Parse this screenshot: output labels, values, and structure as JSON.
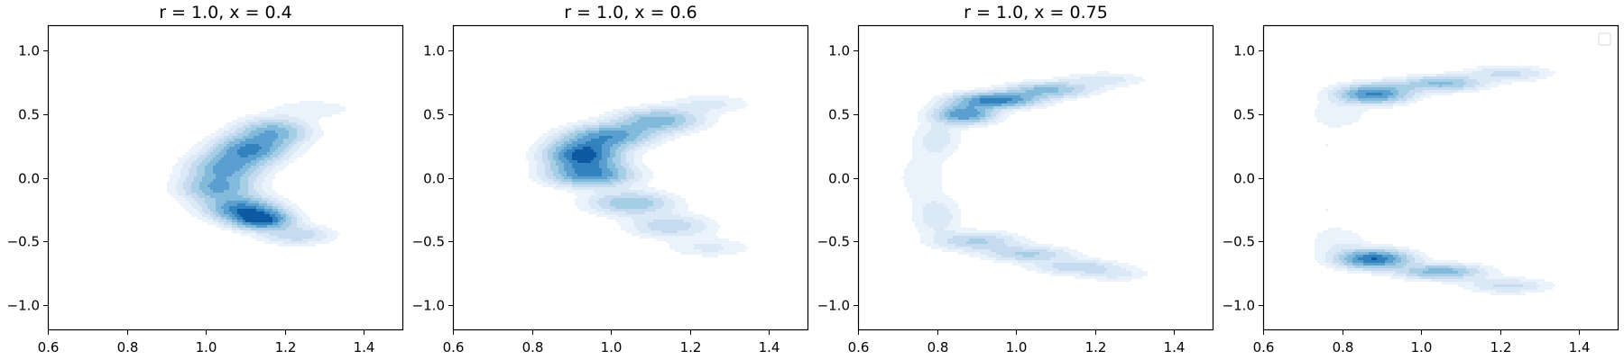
{
  "chart_data": [
    {
      "type": "contour",
      "title": "r = 1.0, x = 0.4",
      "xlim": [
        0.6,
        1.5
      ],
      "ylim": [
        -1.2,
        1.2
      ],
      "xticks": [
        0.6,
        0.8,
        1.0,
        1.2,
        1.4
      ],
      "yticks": [
        -1.0,
        -0.5,
        0.0,
        0.5,
        1.0
      ],
      "xtick_labels": [
        "0.6",
        "0.8",
        "1.0",
        "1.2",
        "1.4"
      ],
      "ytick_labels": [
        "−1.0",
        "−0.5",
        "0.0",
        "0.5",
        "1.0"
      ],
      "colormap": "Blues",
      "density_blobs": [
        {
          "x": 1.27,
          "y": 0.54,
          "sx": 0.07,
          "sy": 0.05,
          "w": 0.12
        },
        {
          "x": 1.17,
          "y": 0.36,
          "sx": 0.06,
          "sy": 0.07,
          "w": 0.55
        },
        {
          "x": 1.11,
          "y": 0.22,
          "sx": 0.06,
          "sy": 0.07,
          "w": 0.75
        },
        {
          "x": 1.05,
          "y": 0.08,
          "sx": 0.06,
          "sy": 0.07,
          "w": 0.6
        },
        {
          "x": 1.03,
          "y": -0.08,
          "sx": 0.06,
          "sy": 0.07,
          "w": 0.6
        },
        {
          "x": 1.09,
          "y": -0.24,
          "sx": 0.06,
          "sy": 0.06,
          "w": 0.75
        },
        {
          "x": 1.14,
          "y": -0.33,
          "sx": 0.05,
          "sy": 0.05,
          "w": 0.95
        },
        {
          "x": 1.23,
          "y": -0.45,
          "sx": 0.06,
          "sy": 0.05,
          "w": 0.3
        }
      ]
    },
    {
      "type": "contour",
      "title": "r = 1.0, x = 0.6",
      "xlim": [
        0.6,
        1.5
      ],
      "ylim": [
        -1.2,
        1.2
      ],
      "xticks": [
        0.6,
        0.8,
        1.0,
        1.2,
        1.4
      ],
      "yticks": [
        -1.0,
        -0.5,
        0.0,
        0.5,
        1.0
      ],
      "xtick_labels": [
        "0.6",
        "0.8",
        "1.0",
        "1.2",
        "1.4"
      ],
      "ytick_labels": [
        "−1.0",
        "−0.5",
        "0.0",
        "0.5",
        "1.0"
      ],
      "colormap": "Blues",
      "density_blobs": [
        {
          "x": 1.25,
          "y": 0.58,
          "sx": 0.07,
          "sy": 0.05,
          "w": 0.15
        },
        {
          "x": 1.12,
          "y": 0.45,
          "sx": 0.07,
          "sy": 0.06,
          "w": 0.55
        },
        {
          "x": 1.0,
          "y": 0.33,
          "sx": 0.07,
          "sy": 0.06,
          "w": 0.65
        },
        {
          "x": 0.93,
          "y": 0.18,
          "sx": 0.06,
          "sy": 0.08,
          "w": 1.0
        },
        {
          "x": 0.95,
          "y": 0.02,
          "sx": 0.07,
          "sy": 0.06,
          "w": 0.7
        },
        {
          "x": 1.05,
          "y": -0.2,
          "sx": 0.07,
          "sy": 0.06,
          "w": 0.45
        },
        {
          "x": 1.15,
          "y": -0.38,
          "sx": 0.07,
          "sy": 0.06,
          "w": 0.3
        },
        {
          "x": 1.25,
          "y": -0.55,
          "sx": 0.07,
          "sy": 0.05,
          "w": 0.15
        }
      ]
    },
    {
      "type": "contour",
      "title": "r = 1.0, x = 0.75",
      "xlim": [
        0.6,
        1.5
      ],
      "ylim": [
        -1.2,
        1.2
      ],
      "xticks": [
        0.6,
        0.8,
        1.0,
        1.2,
        1.4
      ],
      "yticks": [
        -1.0,
        -0.5,
        0.0,
        0.5,
        1.0
      ],
      "xtick_labels": [
        "0.6",
        "0.8",
        "1.0",
        "1.2",
        "1.4"
      ],
      "ytick_labels": [
        "−1.0",
        "−0.5",
        "0.0",
        "0.5",
        "1.0"
      ],
      "colormap": "Blues",
      "density_blobs": [
        {
          "x": 1.22,
          "y": 0.77,
          "sx": 0.07,
          "sy": 0.04,
          "w": 0.18
        },
        {
          "x": 1.08,
          "y": 0.69,
          "sx": 0.07,
          "sy": 0.04,
          "w": 0.5
        },
        {
          "x": 0.95,
          "y": 0.61,
          "sx": 0.07,
          "sy": 0.04,
          "w": 0.85
        },
        {
          "x": 0.87,
          "y": 0.5,
          "sx": 0.05,
          "sy": 0.05,
          "w": 0.75
        },
        {
          "x": 0.8,
          "y": 0.3,
          "sx": 0.04,
          "sy": 0.1,
          "w": 0.18
        },
        {
          "x": 0.76,
          "y": 0.0,
          "sx": 0.04,
          "sy": 0.12,
          "w": 0.12
        },
        {
          "x": 0.8,
          "y": -0.3,
          "sx": 0.04,
          "sy": 0.1,
          "w": 0.2
        },
        {
          "x": 0.9,
          "y": -0.5,
          "sx": 0.07,
          "sy": 0.05,
          "w": 0.35
        },
        {
          "x": 1.03,
          "y": -0.6,
          "sx": 0.07,
          "sy": 0.04,
          "w": 0.35
        },
        {
          "x": 1.15,
          "y": -0.7,
          "sx": 0.07,
          "sy": 0.04,
          "w": 0.3
        },
        {
          "x": 1.25,
          "y": -0.76,
          "sx": 0.06,
          "sy": 0.04,
          "w": 0.15
        }
      ]
    },
    {
      "type": "contour",
      "title": "",
      "xlim": [
        0.6,
        1.5
      ],
      "ylim": [
        -1.2,
        1.2
      ],
      "xticks": [
        0.6,
        0.8,
        1.0,
        1.2,
        1.4
      ],
      "yticks": [
        -1.0,
        -0.5,
        0.0,
        0.5,
        1.0
      ],
      "xtick_labels": [
        "0.6",
        "0.8",
        "1.0",
        "1.2",
        "1.4"
      ],
      "ytick_labels": [
        "−1.0",
        "−0.5",
        "0.0",
        "0.5",
        "1.0"
      ],
      "colormap": "Blues",
      "legend": "top-right",
      "density_blobs": [
        {
          "x": 1.22,
          "y": 0.82,
          "sx": 0.07,
          "sy": 0.04,
          "w": 0.25
        },
        {
          "x": 1.05,
          "y": 0.74,
          "sx": 0.07,
          "sy": 0.04,
          "w": 0.5
        },
        {
          "x": 0.88,
          "y": 0.66,
          "sx": 0.06,
          "sy": 0.05,
          "w": 0.8
        },
        {
          "x": 0.79,
          "y": 0.5,
          "sx": 0.05,
          "sy": 0.08,
          "w": 0.12
        },
        {
          "x": 0.76,
          "y": 0.25,
          "sx": 0.03,
          "sy": 0.08,
          "w": 0.06
        },
        {
          "x": 0.76,
          "y": -0.25,
          "sx": 0.03,
          "sy": 0.08,
          "w": 0.06
        },
        {
          "x": 0.79,
          "y": -0.5,
          "sx": 0.05,
          "sy": 0.08,
          "w": 0.12
        },
        {
          "x": 0.88,
          "y": -0.64,
          "sx": 0.06,
          "sy": 0.05,
          "w": 0.9
        },
        {
          "x": 1.05,
          "y": -0.74,
          "sx": 0.07,
          "sy": 0.04,
          "w": 0.55
        },
        {
          "x": 1.22,
          "y": -0.85,
          "sx": 0.07,
          "sy": 0.04,
          "w": 0.25
        }
      ]
    }
  ]
}
